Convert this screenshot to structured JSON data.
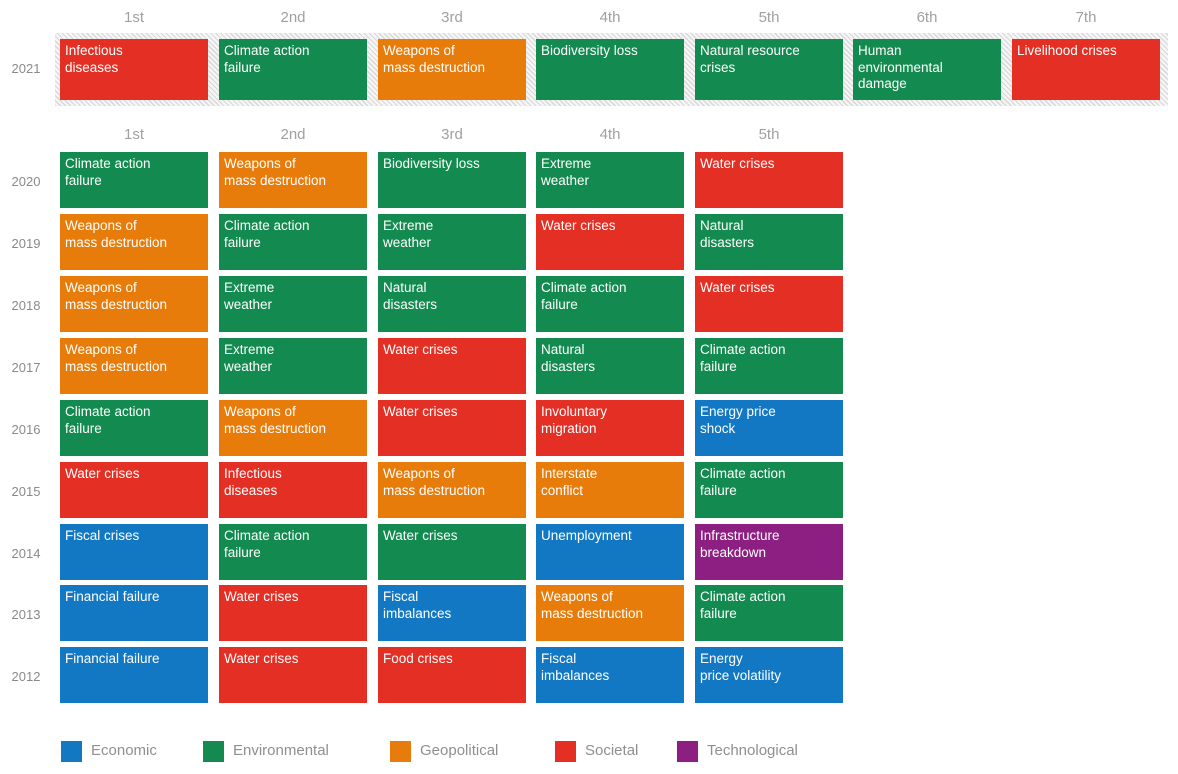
{
  "chart_data": {
    "type": "table",
    "colors": {
      "Economic": "#1278c3",
      "Environmental": "#138a4f",
      "Geopolitical": "#e87c0b",
      "Societal": "#e42f24",
      "Technological": "#8e1f82"
    },
    "ranks_2021": [
      "1st",
      "2nd",
      "3rd",
      "4th",
      "5th",
      "6th",
      "7th"
    ],
    "ranks": [
      "1st",
      "2nd",
      "3rd",
      "4th",
      "5th"
    ],
    "row_2021": {
      "year": "2021",
      "items": [
        {
          "label": "Infectious\ndiseases",
          "category": "Societal"
        },
        {
          "label": "Climate action\nfailure",
          "category": "Environmental"
        },
        {
          "label": "Weapons of\nmass destruction",
          "category": "Geopolitical"
        },
        {
          "label": "Biodiversity loss",
          "category": "Environmental"
        },
        {
          "label": "Natural resource\ncrises",
          "category": "Environmental"
        },
        {
          "label": "Human\nenvironmental\ndamage",
          "category": "Environmental"
        },
        {
          "label": "Livelihood crises",
          "category": "Societal"
        }
      ]
    },
    "rows": [
      {
        "year": "2020",
        "items": [
          {
            "label": "Climate action\nfailure",
            "category": "Environmental"
          },
          {
            "label": "Weapons of\nmass destruction",
            "category": "Geopolitical"
          },
          {
            "label": "Biodiversity loss",
            "category": "Environmental"
          },
          {
            "label": "Extreme\nweather",
            "category": "Environmental"
          },
          {
            "label": "Water crises",
            "category": "Societal"
          }
        ]
      },
      {
        "year": "2019",
        "items": [
          {
            "label": "Weapons of\nmass destruction",
            "category": "Geopolitical"
          },
          {
            "label": "Climate action\nfailure",
            "category": "Environmental"
          },
          {
            "label": "Extreme\nweather",
            "category": "Environmental"
          },
          {
            "label": "Water crises",
            "category": "Societal"
          },
          {
            "label": "Natural\ndisasters",
            "category": "Environmental"
          }
        ]
      },
      {
        "year": "2018",
        "items": [
          {
            "label": "Weapons of\nmass destruction",
            "category": "Geopolitical"
          },
          {
            "label": "Extreme\nweather",
            "category": "Environmental"
          },
          {
            "label": "Natural\ndisasters",
            "category": "Environmental"
          },
          {
            "label": "Climate action\nfailure",
            "category": "Environmental"
          },
          {
            "label": "Water crises",
            "category": "Societal"
          }
        ]
      },
      {
        "year": "2017",
        "items": [
          {
            "label": "Weapons of\nmass destruction",
            "category": "Geopolitical"
          },
          {
            "label": "Extreme\nweather",
            "category": "Environmental"
          },
          {
            "label": "Water crises",
            "category": "Societal"
          },
          {
            "label": "Natural\ndisasters",
            "category": "Environmental"
          },
          {
            "label": "Climate action\nfailure",
            "category": "Environmental"
          }
        ]
      },
      {
        "year": "2016",
        "items": [
          {
            "label": "Climate action\nfailure",
            "category": "Environmental"
          },
          {
            "label": "Weapons of\nmass destruction",
            "category": "Geopolitical"
          },
          {
            "label": "Water crises",
            "category": "Societal"
          },
          {
            "label": "Involuntary\nmigration",
            "category": "Societal"
          },
          {
            "label": "Energy price\nshock",
            "category": "Economic"
          }
        ]
      },
      {
        "year": "2015",
        "items": [
          {
            "label": "Water crises",
            "category": "Societal"
          },
          {
            "label": "Infectious\ndiseases",
            "category": "Societal"
          },
          {
            "label": "Weapons of\nmass destruction",
            "category": "Geopolitical"
          },
          {
            "label": "Interstate\nconflict",
            "category": "Geopolitical"
          },
          {
            "label": "Climate action\nfailure",
            "category": "Environmental"
          }
        ]
      },
      {
        "year": "2014",
        "items": [
          {
            "label": "Fiscal crises",
            "category": "Economic"
          },
          {
            "label": "Climate action\nfailure",
            "category": "Environmental"
          },
          {
            "label": "Water crises",
            "category": "Environmental"
          },
          {
            "label": "Unemployment",
            "category": "Economic"
          },
          {
            "label": "Infrastructure\nbreakdown",
            "category": "Technological"
          }
        ]
      },
      {
        "year": "2013",
        "items": [
          {
            "label": "Financial failure",
            "category": "Economic"
          },
          {
            "label": "Water crises",
            "category": "Societal"
          },
          {
            "label": "Fiscal\nimbalances",
            "category": "Economic"
          },
          {
            "label": "Weapons of\nmass destruction",
            "category": "Geopolitical"
          },
          {
            "label": "Climate action\nfailure",
            "category": "Environmental"
          }
        ]
      },
      {
        "year": "2012",
        "items": [
          {
            "label": "Financial failure",
            "category": "Economic"
          },
          {
            "label": "Water crises",
            "category": "Societal"
          },
          {
            "label": "Food crises",
            "category": "Societal"
          },
          {
            "label": "Fiscal\nimbalances",
            "category": "Economic"
          },
          {
            "label": "Energy\nprice volatility",
            "category": "Economic"
          }
        ]
      }
    ],
    "legend": [
      "Economic",
      "Environmental",
      "Geopolitical",
      "Societal",
      "Technological"
    ]
  }
}
